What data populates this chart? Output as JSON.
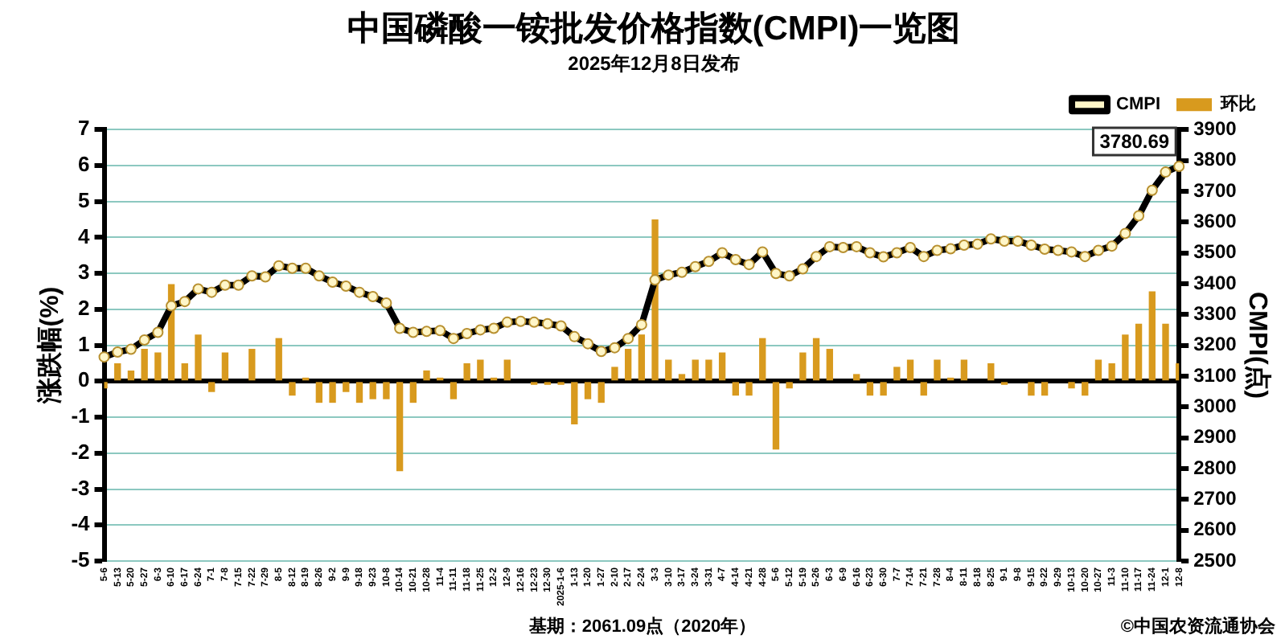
{
  "chart_data": {
    "type": "bar",
    "title": "中国磷酸一铵批发价格指数(CMPI)一览图",
    "subtitle": "2025年12月8日发布",
    "ylabel": "涨跌幅(%)",
    "y2label": "CMPI(点)",
    "categories": [
      "5-6",
      "5-13",
      "5-20",
      "5-27",
      "6-3",
      "6-10",
      "6-17",
      "6-24",
      "7-1",
      "7-8",
      "7-15",
      "7-22",
      "7-29",
      "8-5",
      "8-12",
      "8-19",
      "8-26",
      "9-2",
      "9-9",
      "9-18",
      "9-23",
      "10-8",
      "10-14",
      "10-21",
      "10-28",
      "11-4",
      "11-11",
      "11-18",
      "11-25",
      "12-2",
      "12-9",
      "12-16",
      "12-23",
      "12-30",
      "2025-1-6",
      "1-13",
      "1-20",
      "1-27",
      "2-10",
      "2-17",
      "2-24",
      "3-3",
      "3-10",
      "3-17",
      "3-24",
      "3-31",
      "4-7",
      "4-14",
      "4-21",
      "4-28",
      "5-6",
      "5-12",
      "5-19",
      "5-26",
      "6-3",
      "6-9",
      "6-16",
      "6-23",
      "6-30",
      "7-7",
      "7-14",
      "7-21",
      "7-28",
      "8-4",
      "8-11",
      "8-18",
      "8-25",
      "9-1",
      "9-8",
      "9-15",
      "9-22",
      "9-29",
      "10-13",
      "10-20",
      "10-27",
      "11-3",
      "11-10",
      "11-17",
      "11-24",
      "12-1",
      "12-8"
    ],
    "series": [
      {
        "name": "环比",
        "color": "#d89a1e",
        "values": [
          -0.2,
          0.5,
          0.3,
          0.9,
          0.8,
          2.7,
          0.5,
          1.3,
          -0.3,
          0.8,
          0,
          0.9,
          0,
          1.2,
          -0.4,
          0.1,
          -0.6,
          -0.6,
          -0.3,
          -0.6,
          -0.5,
          -0.5,
          -2.5,
          -0.6,
          0.3,
          0.1,
          -0.5,
          0.5,
          0.6,
          0.1,
          0.6,
          0,
          -0.1,
          -0.1,
          -0.1,
          -1.2,
          -0.5,
          -0.6,
          0.4,
          0.9,
          1.3,
          4.5,
          0.6,
          0.2,
          0.6,
          0.6,
          0.8,
          -0.4,
          -0.4,
          1.2,
          -1.9,
          -0.2,
          0.8,
          1.2,
          0.9,
          0,
          0.2,
          -0.4,
          -0.4,
          0.4,
          0.6,
          -0.4,
          0.6,
          0.1,
          0.6,
          0,
          0.5,
          -0.1,
          0,
          -0.4,
          -0.4,
          0,
          -0.2,
          -0.4,
          0.6,
          0.5,
          1.3,
          1.6,
          2.5,
          1.6,
          0.5
        ]
      },
      {
        "name": "CMPI",
        "type": "line",
        "axis": "y2",
        "color": "#000000",
        "values": [
          3162,
          3178,
          3187,
          3217,
          3242,
          3328,
          3342,
          3383,
          3372,
          3395,
          3395,
          3425,
          3422,
          3458,
          3450,
          3450,
          3425,
          3405,
          3392,
          3372,
          3358,
          3337,
          3255,
          3242,
          3245,
          3248,
          3222,
          3238,
          3250,
          3255,
          3275,
          3278,
          3275,
          3270,
          3263,
          3228,
          3205,
          3180,
          3192,
          3222,
          3267,
          3412,
          3428,
          3437,
          3455,
          3472,
          3500,
          3478,
          3462,
          3503,
          3433,
          3425,
          3448,
          3488,
          3520,
          3517,
          3520,
          3500,
          3487,
          3500,
          3517,
          3488,
          3508,
          3513,
          3525,
          3528,
          3545,
          3538,
          3538,
          3525,
          3512,
          3508,
          3503,
          3488,
          3508,
          3522,
          3563,
          3620,
          3703,
          3762,
          3780.69
        ],
        "value_labels": [
          null,
          null,
          null,
          null,
          null,
          null,
          null,
          null,
          null,
          null,
          null,
          null,
          null,
          null,
          null,
          null,
          null,
          null,
          null,
          null,
          null,
          null,
          null,
          null,
          null,
          null,
          null,
          null,
          null,
          null,
          null,
          null,
          null,
          null,
          null,
          null,
          null,
          null,
          null,
          null,
          null,
          null,
          null,
          null,
          null,
          null,
          null,
          null,
          null,
          null,
          null,
          null,
          null,
          null,
          null,
          null,
          null,
          null,
          null,
          null,
          null,
          null,
          null,
          null,
          null,
          null,
          null,
          null,
          null,
          null,
          null,
          null,
          null,
          null,
          null,
          null,
          null,
          null,
          null,
          null,
          "3780.69"
        ]
      }
    ],
    "ylim": [
      -5,
      7
    ],
    "yticks": [
      -5,
      -4,
      -3,
      -2,
      -1,
      0,
      1,
      2,
      3,
      4,
      5,
      6,
      7
    ],
    "y2lim": [
      2500,
      3900
    ],
    "y2ticks": [
      2500,
      2600,
      2700,
      2800,
      2900,
      3000,
      3100,
      3200,
      3300,
      3400,
      3500,
      3600,
      3700,
      3800,
      3900
    ],
    "grid": "y",
    "legend": "top right",
    "marker": "circle",
    "line_style": "solid",
    "annotations": [
      "基期：2061.09点（2020年）",
      "©中国农资流通协会"
    ]
  }
}
